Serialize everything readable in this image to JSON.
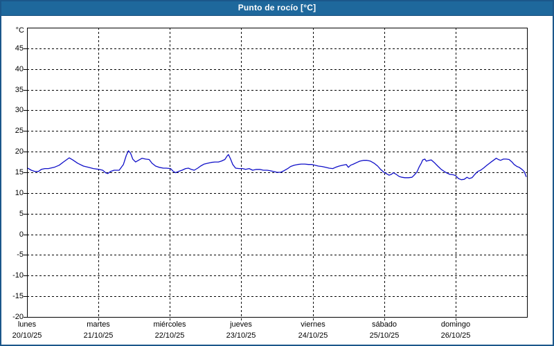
{
  "window": {
    "title": "Punto de rocío [°C]"
  },
  "colors": {
    "titlebar_bg": "#1e689c",
    "frame_border": "#1b578a",
    "plot_border": "#000000",
    "grid": "#000000",
    "series_line": "#0f0fc8",
    "background": "#ffffff",
    "title_text": "#ffffff",
    "axis_text": "#000000"
  },
  "chart_data": {
    "type": "line",
    "title": "Punto de rocío [°C]",
    "xlabel": "",
    "ylabel": "°C",
    "ylim": [
      -20,
      50
    ],
    "yticks": [
      45,
      40,
      35,
      30,
      25,
      20,
      15,
      10,
      5,
      0,
      -5,
      -10,
      -15,
      -20
    ],
    "grid": "dashed",
    "legend": "none",
    "x_days": [
      {
        "name": "lunes",
        "date": "20/10/25"
      },
      {
        "name": "martes",
        "date": "21/10/25"
      },
      {
        "name": "miércoles",
        "date": "22/10/25"
      },
      {
        "name": "jueves",
        "date": "23/10/25"
      },
      {
        "name": "viernes",
        "date": "24/10/25"
      },
      {
        "name": "sábado",
        "date": "25/10/25"
      },
      {
        "name": "domingo",
        "date": "26/10/25"
      }
    ],
    "series": [
      {
        "name": "Punto de rocío",
        "unit": "°C",
        "color": "#0f0fc8",
        "points": [
          [
            0.01,
            16.0
          ],
          [
            0.06,
            15.5
          ],
          [
            0.11,
            15.2
          ],
          [
            0.16,
            15.2
          ],
          [
            0.2,
            15.7
          ],
          [
            0.25,
            15.9
          ],
          [
            0.3,
            15.9
          ],
          [
            0.38,
            16.2
          ],
          [
            0.45,
            16.7
          ],
          [
            0.51,
            17.5
          ],
          [
            0.59,
            18.5
          ],
          [
            0.64,
            18.0
          ],
          [
            0.71,
            17.2
          ],
          [
            0.79,
            16.5
          ],
          [
            0.86,
            16.2
          ],
          [
            0.93,
            15.9
          ],
          [
            1.01,
            15.7
          ],
          [
            1.06,
            15.5
          ],
          [
            1.1,
            14.9
          ],
          [
            1.13,
            14.7
          ],
          [
            1.17,
            15.2
          ],
          [
            1.22,
            15.5
          ],
          [
            1.29,
            15.5
          ],
          [
            1.35,
            16.9
          ],
          [
            1.39,
            19.1
          ],
          [
            1.42,
            20.2
          ],
          [
            1.45,
            19.6
          ],
          [
            1.48,
            18.2
          ],
          [
            1.52,
            17.5
          ],
          [
            1.56,
            17.9
          ],
          [
            1.61,
            18.4
          ],
          [
            1.66,
            18.2
          ],
          [
            1.71,
            18.1
          ],
          [
            1.75,
            17.2
          ],
          [
            1.8,
            16.5
          ],
          [
            1.85,
            16.2
          ],
          [
            1.91,
            16.0
          ],
          [
            1.95,
            16.0
          ],
          [
            2.01,
            15.9
          ],
          [
            2.05,
            15.2
          ],
          [
            2.08,
            14.9
          ],
          [
            2.12,
            15.2
          ],
          [
            2.17,
            15.5
          ],
          [
            2.22,
            15.9
          ],
          [
            2.26,
            16.0
          ],
          [
            2.3,
            15.7
          ],
          [
            2.34,
            15.5
          ],
          [
            2.39,
            16.0
          ],
          [
            2.43,
            16.5
          ],
          [
            2.48,
            17.0
          ],
          [
            2.53,
            17.2
          ],
          [
            2.58,
            17.4
          ],
          [
            2.63,
            17.5
          ],
          [
            2.68,
            17.5
          ],
          [
            2.72,
            17.7
          ],
          [
            2.77,
            18.1
          ],
          [
            2.8,
            18.9
          ],
          [
            2.82,
            19.3
          ],
          [
            2.85,
            18.2
          ],
          [
            2.88,
            16.9
          ],
          [
            2.92,
            16.0
          ],
          [
            2.97,
            15.9
          ],
          [
            3.02,
            15.9
          ],
          [
            3.06,
            15.7
          ],
          [
            3.11,
            15.9
          ],
          [
            3.16,
            15.5
          ],
          [
            3.21,
            15.7
          ],
          [
            3.26,
            15.7
          ],
          [
            3.31,
            15.5
          ],
          [
            3.36,
            15.5
          ],
          [
            3.4,
            15.4
          ],
          [
            3.45,
            15.2
          ],
          [
            3.5,
            15.0
          ],
          [
            3.55,
            15.0
          ],
          [
            3.6,
            15.4
          ],
          [
            3.65,
            15.9
          ],
          [
            3.69,
            16.4
          ],
          [
            3.74,
            16.7
          ],
          [
            3.79,
            16.9
          ],
          [
            3.84,
            17.0
          ],
          [
            3.89,
            17.0
          ],
          [
            3.94,
            16.9
          ],
          [
            3.99,
            16.9
          ],
          [
            4.03,
            16.7
          ],
          [
            4.08,
            16.5
          ],
          [
            4.13,
            16.4
          ],
          [
            4.18,
            16.2
          ],
          [
            4.23,
            16.0
          ],
          [
            4.28,
            15.9
          ],
          [
            4.32,
            16.2
          ],
          [
            4.37,
            16.5
          ],
          [
            4.42,
            16.7
          ],
          [
            4.47,
            16.9
          ],
          [
            4.5,
            16.2
          ],
          [
            4.53,
            16.7
          ],
          [
            4.57,
            17.0
          ],
          [
            4.62,
            17.4
          ],
          [
            4.66,
            17.7
          ],
          [
            4.71,
            17.9
          ],
          [
            4.76,
            17.9
          ],
          [
            4.81,
            17.7
          ],
          [
            4.86,
            17.2
          ],
          [
            4.91,
            16.5
          ],
          [
            4.95,
            15.7
          ],
          [
            4.99,
            15.1
          ],
          [
            5.03,
            14.7
          ],
          [
            5.07,
            14.3
          ],
          [
            5.1,
            14.5
          ],
          [
            5.13,
            14.9
          ],
          [
            5.17,
            14.5
          ],
          [
            5.21,
            14.0
          ],
          [
            5.25,
            13.8
          ],
          [
            5.29,
            13.7
          ],
          [
            5.34,
            13.7
          ],
          [
            5.39,
            13.8
          ],
          [
            5.42,
            14.3
          ],
          [
            5.46,
            15.1
          ],
          [
            5.49,
            16.3
          ],
          [
            5.52,
            17.2
          ],
          [
            5.54,
            18.0
          ],
          [
            5.57,
            18.2
          ],
          [
            5.59,
            17.7
          ],
          [
            5.63,
            17.9
          ],
          [
            5.66,
            18.0
          ],
          [
            5.7,
            17.4
          ],
          [
            5.75,
            16.5
          ],
          [
            5.8,
            15.7
          ],
          [
            5.86,
            15.0
          ],
          [
            5.92,
            14.5
          ],
          [
            5.97,
            14.4
          ],
          [
            6.0,
            14.2
          ],
          [
            6.04,
            13.5
          ],
          [
            6.08,
            13.2
          ],
          [
            6.12,
            13.3
          ],
          [
            6.16,
            13.8
          ],
          [
            6.19,
            13.5
          ],
          [
            6.23,
            13.7
          ],
          [
            6.27,
            14.5
          ],
          [
            6.31,
            15.2
          ],
          [
            6.35,
            15.5
          ],
          [
            6.39,
            16.0
          ],
          [
            6.44,
            16.7
          ],
          [
            6.49,
            17.4
          ],
          [
            6.53,
            17.9
          ],
          [
            6.57,
            18.4
          ],
          [
            6.6,
            18.1
          ],
          [
            6.63,
            17.9
          ],
          [
            6.67,
            18.2
          ],
          [
            6.71,
            18.2
          ],
          [
            6.75,
            18.1
          ],
          [
            6.79,
            17.5
          ],
          [
            6.82,
            16.9
          ],
          [
            6.86,
            16.4
          ],
          [
            6.89,
            16.2
          ],
          [
            6.93,
            15.7
          ],
          [
            6.96,
            15.2
          ],
          [
            6.99,
            13.9
          ]
        ]
      }
    ]
  }
}
